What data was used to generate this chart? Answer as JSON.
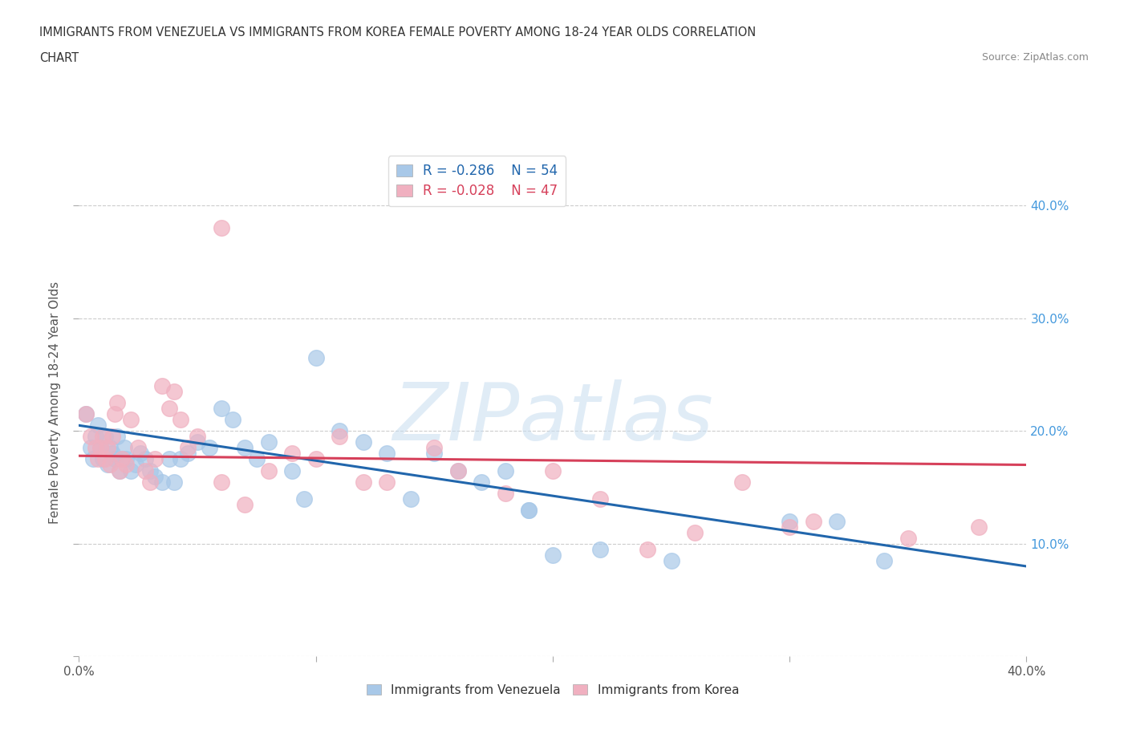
{
  "title_line1": "IMMIGRANTS FROM VENEZUELA VS IMMIGRANTS FROM KOREA FEMALE POVERTY AMONG 18-24 YEAR OLDS CORRELATION",
  "title_line2": "CHART",
  "source": "Source: ZipAtlas.com",
  "ylabel": "Female Poverty Among 18-24 Year Olds",
  "xlim": [
    0.0,
    0.4
  ],
  "ylim": [
    0.0,
    0.45
  ],
  "watermark": "ZIPatlas",
  "legend_r_venezuela": "-0.286",
  "legend_n_venezuela": "54",
  "legend_r_korea": "-0.028",
  "legend_n_korea": "47",
  "color_venezuela": "#a8c8e8",
  "color_korea": "#f0b0c0",
  "line_color_venezuela": "#2166ac",
  "line_color_korea": "#d6405a",
  "ven_line_y0": 0.205,
  "ven_line_y1": 0.08,
  "kor_line_y0": 0.178,
  "kor_line_y1": 0.17,
  "background_color": "#ffffff",
  "grid_color": "#cccccc",
  "venezuela_x": [
    0.003,
    0.005,
    0.006,
    0.007,
    0.008,
    0.009,
    0.01,
    0.011,
    0.012,
    0.013,
    0.014,
    0.015,
    0.016,
    0.017,
    0.018,
    0.019,
    0.02,
    0.022,
    0.024,
    0.026,
    0.028,
    0.03,
    0.032,
    0.035,
    0.038,
    0.04,
    0.043,
    0.046,
    0.05,
    0.055,
    0.06,
    0.065,
    0.07,
    0.075,
    0.08,
    0.09,
    0.095,
    0.1,
    0.11,
    0.12,
    0.13,
    0.14,
    0.15,
    0.16,
    0.17,
    0.18,
    0.19,
    0.2,
    0.22,
    0.25,
    0.3,
    0.32,
    0.34,
    0.19
  ],
  "venezuela_y": [
    0.215,
    0.185,
    0.175,
    0.195,
    0.205,
    0.185,
    0.175,
    0.195,
    0.17,
    0.185,
    0.18,
    0.175,
    0.195,
    0.165,
    0.175,
    0.185,
    0.175,
    0.165,
    0.17,
    0.18,
    0.175,
    0.165,
    0.16,
    0.155,
    0.175,
    0.155,
    0.175,
    0.18,
    0.19,
    0.185,
    0.22,
    0.21,
    0.185,
    0.175,
    0.19,
    0.165,
    0.14,
    0.265,
    0.2,
    0.19,
    0.18,
    0.14,
    0.18,
    0.165,
    0.155,
    0.165,
    0.13,
    0.09,
    0.095,
    0.085,
    0.12,
    0.12,
    0.085,
    0.13
  ],
  "korea_x": [
    0.003,
    0.005,
    0.007,
    0.008,
    0.009,
    0.01,
    0.011,
    0.012,
    0.013,
    0.014,
    0.015,
    0.016,
    0.017,
    0.018,
    0.02,
    0.022,
    0.025,
    0.028,
    0.03,
    0.032,
    0.035,
    0.038,
    0.04,
    0.043,
    0.046,
    0.05,
    0.06,
    0.07,
    0.08,
    0.09,
    0.1,
    0.11,
    0.12,
    0.13,
    0.15,
    0.16,
    0.18,
    0.2,
    0.22,
    0.24,
    0.26,
    0.28,
    0.3,
    0.31,
    0.35,
    0.06,
    0.38
  ],
  "korea_y": [
    0.215,
    0.195,
    0.185,
    0.175,
    0.185,
    0.195,
    0.175,
    0.185,
    0.17,
    0.195,
    0.215,
    0.225,
    0.165,
    0.175,
    0.17,
    0.21,
    0.185,
    0.165,
    0.155,
    0.175,
    0.24,
    0.22,
    0.235,
    0.21,
    0.185,
    0.195,
    0.155,
    0.135,
    0.165,
    0.18,
    0.175,
    0.195,
    0.155,
    0.155,
    0.185,
    0.165,
    0.145,
    0.165,
    0.14,
    0.095,
    0.11,
    0.155,
    0.115,
    0.12,
    0.105,
    0.38,
    0.115
  ]
}
